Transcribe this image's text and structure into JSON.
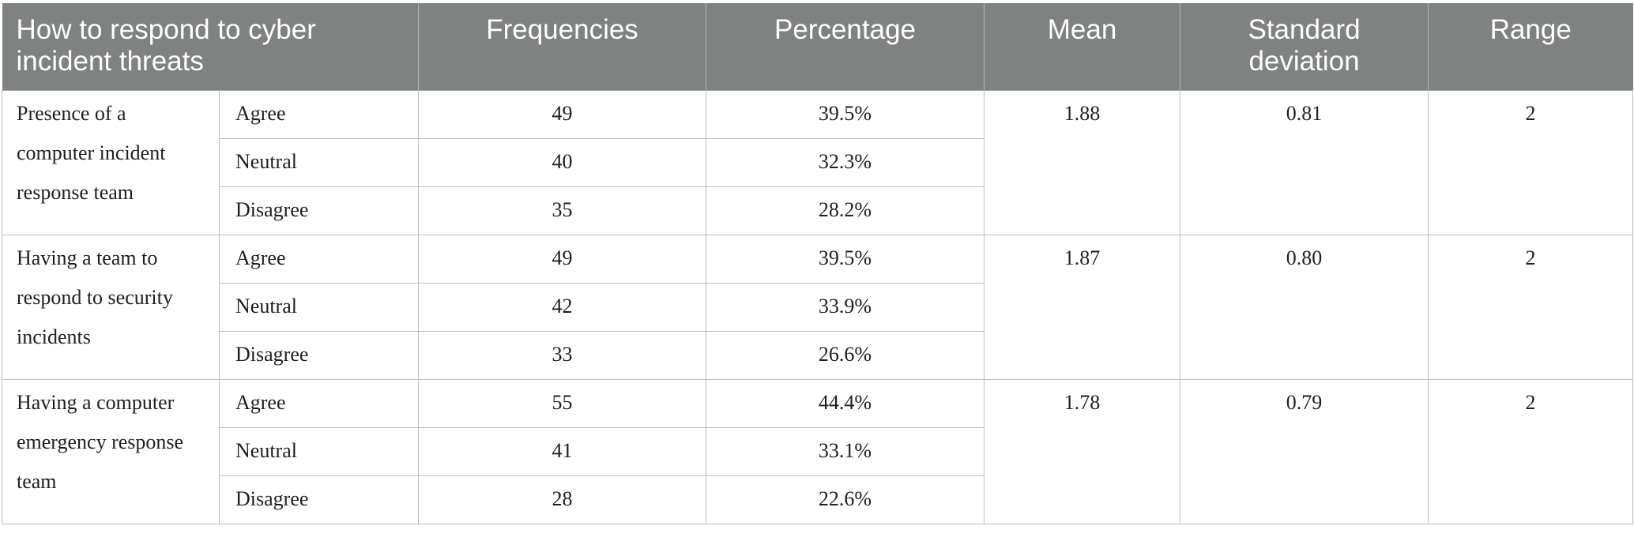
{
  "headers": {
    "topic": "How to respond to cyber incident threats",
    "frequencies": "Frequencies",
    "percentage": "Percentage",
    "mean": "Mean",
    "std": "Standard deviation",
    "range": "Range"
  },
  "groups": [
    {
      "label": "Presence of a computer incident response team",
      "mean": "1.88",
      "std": "0.81",
      "range": "2",
      "rows": [
        {
          "response": "Agree",
          "freq": "49",
          "pct": "39.5%"
        },
        {
          "response": "Neutral",
          "freq": "40",
          "pct": "32.3%"
        },
        {
          "response": "Disagree",
          "freq": "35",
          "pct": "28.2%"
        }
      ]
    },
    {
      "label": "Having a team to respond to security incidents",
      "mean": "1.87",
      "std": "0.80",
      "range": "2",
      "rows": [
        {
          "response": "Agree",
          "freq": "49",
          "pct": "39.5%"
        },
        {
          "response": "Neutral",
          "freq": "42",
          "pct": "33.9%"
        },
        {
          "response": "Disagree",
          "freq": "33",
          "pct": "26.6%"
        }
      ]
    },
    {
      "label": "Having a computer emergency response team",
      "mean": "1.78",
      "std": "0.79",
      "range": "2",
      "rows": [
        {
          "response": "Agree",
          "freq": "55",
          "pct": "44.4%"
        },
        {
          "response": "Neutral",
          "freq": "41",
          "pct": "33.1%"
        },
        {
          "response": "Disagree",
          "freq": "28",
          "pct": "22.6%"
        }
      ]
    }
  ]
}
